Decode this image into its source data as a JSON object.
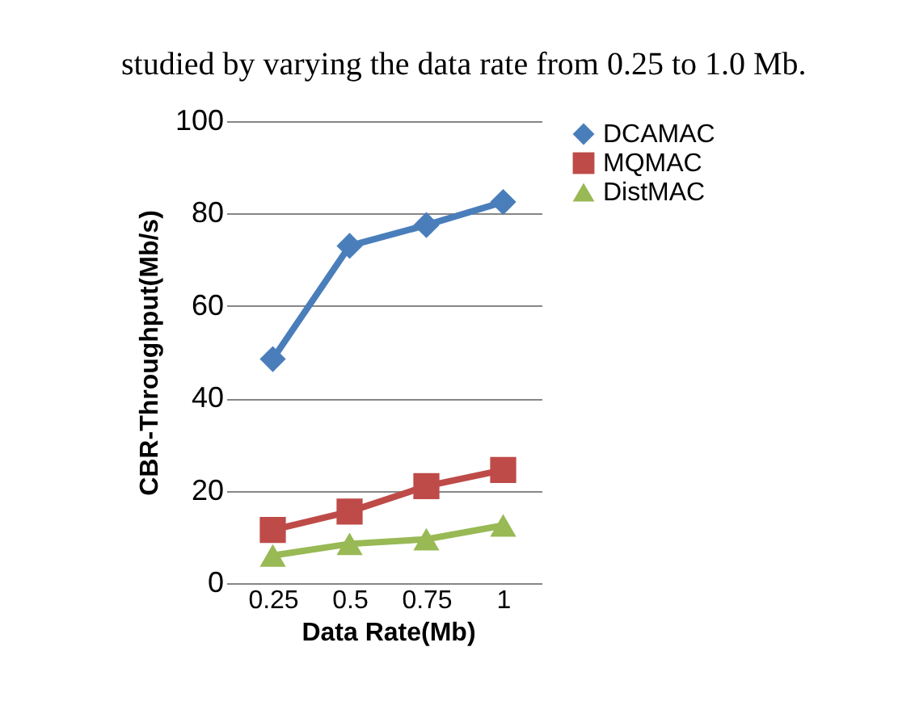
{
  "chart_data": {
    "type": "line",
    "xlabel": "Data Rate(Mb)",
    "ylabel": "CBR-Throughput(Mb/s)",
    "annotations": [
      "studied by varying the data rate from 0.25 to 1.0 Mb."
    ],
    "categories": [
      "0.25",
      "0.5",
      "0.75",
      "1"
    ],
    "series": [
      {
        "name": "DCAMAC",
        "color": "#4a7ebb",
        "marker": "diamond",
        "values": [
          48.5,
          73,
          77.5,
          82.5
        ]
      },
      {
        "name": "MQMAC",
        "color": "#be4b48",
        "marker": "square",
        "values": [
          11.5,
          15.5,
          21,
          24.5
        ]
      },
      {
        "name": "DistMAC",
        "color": "#98b954",
        "marker": "triangle",
        "values": [
          6,
          8.5,
          9.5,
          12.5
        ]
      }
    ],
    "ylim": [
      0,
      100
    ],
    "yticks": [
      0,
      20,
      40,
      60,
      80,
      100
    ],
    "grid": "y",
    "legend": "right",
    "line_style": "solid"
  }
}
